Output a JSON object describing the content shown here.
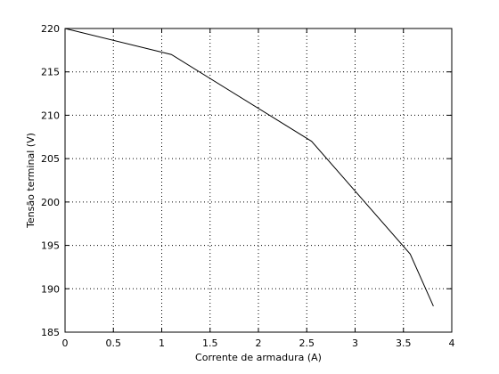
{
  "chart_data": {
    "type": "line",
    "xlabel": "Corrente de armadura (A)",
    "ylabel": "Tensão terminal (V)",
    "xlim": [
      0,
      4
    ],
    "ylim": [
      185,
      220
    ],
    "xticks": [
      0,
      0.5,
      1,
      1.5,
      2,
      2.5,
      3,
      3.5,
      4
    ],
    "xtick_labels": [
      "0",
      "0.5",
      "1",
      "1.5",
      "2",
      "2.5",
      "3",
      "3.5",
      "4"
    ],
    "yticks": [
      185,
      190,
      195,
      200,
      205,
      210,
      215,
      220
    ],
    "ytick_labels": [
      "185",
      "190",
      "195",
      "200",
      "205",
      "210",
      "215",
      "220"
    ],
    "grid": true,
    "grid_style": "dotted",
    "series": [
      {
        "color": "#000000",
        "x": [
          0,
          1.1,
          2.55,
          3.57,
          3.81
        ],
        "y": [
          220,
          217,
          207,
          194,
          188
        ]
      }
    ]
  }
}
